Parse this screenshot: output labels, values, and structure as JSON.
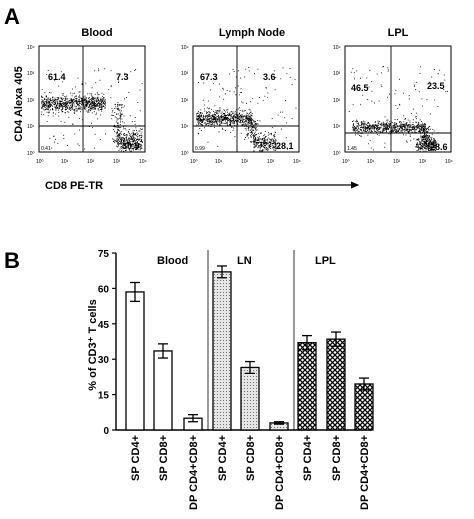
{
  "panels": [
    {
      "panel_label": "A",
      "type": "flow-cytometry-quadrant-plots",
      "y_axis_label": "CD4 Alexa 405",
      "x_axis_label": "CD8 PE-TR",
      "plots": [
        {
          "title": "Blood",
          "quadrants": {
            "upper_left": "61.4",
            "upper_right": "7.3",
            "lower_right": "30.9",
            "lower_left": "0.41"
          }
        },
        {
          "title": "Lymph Node",
          "quadrants": {
            "upper_left": "67.3",
            "upper_right": "3.6",
            "lower_right": "28.1",
            "lower_left": "0.99"
          }
        },
        {
          "title": "LPL",
          "quadrants": {
            "upper_left": "46.5",
            "upper_right": "23.5",
            "lower_right": "28.6",
            "lower_left": "1.45"
          }
        }
      ],
      "tick_labels": [
        "10⁰",
        "10¹",
        "10²",
        "10³",
        "10⁴"
      ]
    }
  ],
  "chart_data": {
    "panel_label": "B",
    "type": "bar",
    "ylabel": "% of CD3⁺ T cells",
    "xlabel": "",
    "ylim": [
      0,
      75
    ],
    "yticks": [
      "0",
      "15",
      "30",
      "45",
      "60",
      "75"
    ],
    "grid": false,
    "groups": [
      "Blood",
      "LN",
      "LPL"
    ],
    "categories": [
      "SP CD4+",
      "SP CD8+",
      "DP CD4+CD8+",
      "SP CD4+",
      "SP CD8+",
      "DP CD4+CD8+",
      "SP CD4+",
      "SP CD8+",
      "DP CD4+CD8+"
    ],
    "values": [
      58.5,
      33.5,
      5.0,
      67.0,
      26.5,
      3.0,
      37.0,
      38.5,
      19.5
    ],
    "errors": [
      4.0,
      3.0,
      1.5,
      2.5,
      2.5,
      0.5,
      3.0,
      3.0,
      2.5
    ],
    "fills": [
      "white",
      "white",
      "white",
      "dotted",
      "dotted",
      "dotted",
      "crosshatch",
      "crosshatch",
      "crosshatch"
    ]
  }
}
